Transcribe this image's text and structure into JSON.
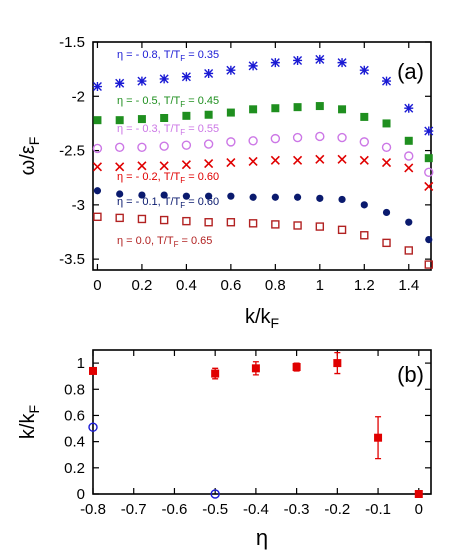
{
  "chart_data": [
    {
      "type": "scatter",
      "panel_label": "(a)",
      "xlabel": "k/k",
      "xlabel_sub": "F",
      "ylabel": "ω/ε",
      "ylabel_sub": "F",
      "xlim": [
        -0.02,
        1.5
      ],
      "ylim": [
        -3.6,
        -1.5
      ],
      "xticks": [
        0,
        0.2,
        0.4,
        0.6,
        0.8,
        1,
        1.2,
        1.4
      ],
      "xtick_labels": [
        "0",
        "0.2",
        "0.4",
        "0.6",
        "0.8",
        "1",
        "1.2",
        "1.4"
      ],
      "yticks": [
        -1.5,
        -2,
        -2.5,
        -3,
        -3.5
      ],
      "ytick_labels": [
        "-1.5",
        "-2",
        "-2.5",
        "-3",
        "-3.5"
      ],
      "grid": false,
      "legend_position": "inline-left",
      "series": [
        {
          "name": "η = - 0.8, T/T",
          "name_sub": "F",
          "name_tail": " = 0.35",
          "color": "#1a1ad4",
          "marker": "asterisk",
          "x": [
            0,
            0.1,
            0.2,
            0.3,
            0.4,
            0.5,
            0.6,
            0.7,
            0.8,
            0.9,
            1.0,
            1.1,
            1.2,
            1.3,
            1.4,
            1.49
          ],
          "y": [
            -1.91,
            -1.88,
            -1.86,
            -1.84,
            -1.82,
            -1.79,
            -1.76,
            -1.72,
            -1.69,
            -1.67,
            -1.66,
            -1.69,
            -1.76,
            -1.86,
            -2.11,
            -2.32
          ]
        },
        {
          "name": "η = - 0.5, T/T",
          "name_sub": "F",
          "name_tail": " = 0.45",
          "color": "#1f8f1f",
          "marker": "square-filled",
          "x": [
            0,
            0.1,
            0.2,
            0.3,
            0.4,
            0.5,
            0.6,
            0.7,
            0.8,
            0.9,
            1.0,
            1.1,
            1.2,
            1.3,
            1.4,
            1.49
          ],
          "y": [
            -2.22,
            -2.22,
            -2.21,
            -2.2,
            -2.18,
            -2.17,
            -2.15,
            -2.12,
            -2.11,
            -2.1,
            -2.09,
            -2.12,
            -2.19,
            -2.25,
            -2.41,
            -2.57
          ]
        },
        {
          "name": "η = - 0.3, T/T",
          "name_sub": "F",
          "name_tail": " = 0.55",
          "color": "#cc77e6",
          "marker": "circle-open",
          "x": [
            0,
            0.1,
            0.2,
            0.3,
            0.4,
            0.5,
            0.6,
            0.7,
            0.8,
            0.9,
            1.0,
            1.1,
            1.2,
            1.3,
            1.4,
            1.49
          ],
          "y": [
            -2.48,
            -2.47,
            -2.47,
            -2.46,
            -2.45,
            -2.44,
            -2.42,
            -2.41,
            -2.39,
            -2.38,
            -2.37,
            -2.38,
            -2.42,
            -2.47,
            -2.55,
            -2.7
          ]
        },
        {
          "name": "η = - 0.2, T/T",
          "name_sub": "F",
          "name_tail": " = 0.60",
          "color": "#e00000",
          "marker": "cross",
          "x": [
            0,
            0.1,
            0.2,
            0.3,
            0.4,
            0.5,
            0.6,
            0.7,
            0.8,
            0.9,
            1.0,
            1.1,
            1.2,
            1.3,
            1.4,
            1.49
          ],
          "y": [
            -2.65,
            -2.65,
            -2.64,
            -2.64,
            -2.63,
            -2.62,
            -2.61,
            -2.6,
            -2.59,
            -2.59,
            -2.58,
            -2.58,
            -2.59,
            -2.61,
            -2.66,
            -2.83
          ]
        },
        {
          "name": "η = - 0.1, T/T",
          "name_sub": "F",
          "name_tail": " = 0.60",
          "color": "#0a1a6e",
          "marker": "circle-filled",
          "x": [
            0,
            0.1,
            0.2,
            0.3,
            0.4,
            0.5,
            0.6,
            0.7,
            0.8,
            0.9,
            1.0,
            1.1,
            1.2,
            1.3,
            1.4,
            1.49
          ],
          "y": [
            -2.87,
            -2.9,
            -2.91,
            -2.91,
            -2.92,
            -2.92,
            -2.92,
            -2.93,
            -2.93,
            -2.93,
            -2.94,
            -2.95,
            -3.0,
            -3.07,
            -3.16,
            -3.32
          ]
        },
        {
          "name": "η =  0.0, T/T",
          "name_sub": "F",
          "name_tail": " = 0.65",
          "color": "#b22222",
          "marker": "square-open",
          "x": [
            0,
            0.1,
            0.2,
            0.3,
            0.4,
            0.5,
            0.6,
            0.7,
            0.8,
            0.9,
            1.0,
            1.1,
            1.2,
            1.3,
            1.4,
            1.49
          ],
          "y": [
            -3.11,
            -3.12,
            -3.13,
            -3.14,
            -3.15,
            -3.16,
            -3.16,
            -3.17,
            -3.18,
            -3.19,
            -3.2,
            -3.23,
            -3.28,
            -3.35,
            -3.42,
            -3.55
          ]
        }
      ]
    },
    {
      "type": "scatter",
      "panel_label": "(b)",
      "xlabel": "η",
      "ylabel": "k/k",
      "ylabel_sub": "F",
      "xlim": [
        -0.8,
        0.03
      ],
      "ylim": [
        0,
        1.1
      ],
      "xticks": [
        -0.8,
        -0.7,
        -0.6,
        -0.5,
        -0.4,
        -0.3,
        -0.2,
        -0.1,
        0
      ],
      "xtick_labels": [
        "-0.8",
        "-0.7",
        "-0.6",
        "-0.5",
        "-0.4",
        "-0.3",
        "-0.2",
        "-0.1",
        "0"
      ],
      "yticks": [
        0,
        0.2,
        0.4,
        0.6,
        0.8,
        1
      ],
      "ytick_labels": [
        "0",
        "0.2",
        "0.4",
        "0.6",
        "0.8",
        "1"
      ],
      "grid": false,
      "series": [
        {
          "color": "#e00000",
          "marker": "square-filled",
          "errorbars": true,
          "x": [
            -0.8,
            -0.5,
            -0.4,
            -0.3,
            -0.2,
            -0.1,
            0
          ],
          "y": [
            0.94,
            0.92,
            0.96,
            0.97,
            1.0,
            0.43,
            0.0
          ],
          "err": [
            0.0,
            0.04,
            0.05,
            0.03,
            0.08,
            0.16,
            0.0
          ]
        },
        {
          "color": "#1a1ad4",
          "marker": "circle-open",
          "x": [
            -0.8,
            -0.5
          ],
          "y": [
            0.51,
            0.0
          ]
        }
      ]
    }
  ]
}
